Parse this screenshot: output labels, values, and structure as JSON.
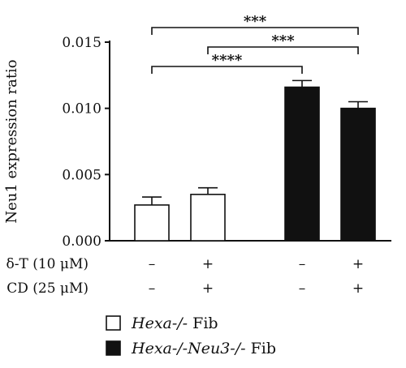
{
  "chart_data": {
    "type": "bar",
    "ylabel": "Neu1 expression ratio",
    "ylim": [
      0,
      0.015
    ],
    "yticks": [
      "0.000",
      "0.005",
      "0.010",
      "0.015"
    ],
    "ytick_values": [
      0,
      0.005,
      0.01,
      0.015
    ],
    "groups": [
      {
        "name": "Hexa-/- Fib",
        "name_italic": "Hexa-/-",
        "name_plain": " Fib",
        "fill": "#ffffff"
      },
      {
        "name": "Hexa-/-Neu3-/- Fib",
        "name_italic": "Hexa-/-Neu3-/-",
        "name_plain": " Fib",
        "fill": "#111111"
      }
    ],
    "bars": [
      {
        "group": 0,
        "treatment": {
          "dT": "–",
          "CD": "–"
        },
        "value": 0.0027,
        "error": 0.0006
      },
      {
        "group": 0,
        "treatment": {
          "dT": "+",
          "CD": "+"
        },
        "value": 0.0035,
        "error": 0.0005
      },
      {
        "group": 1,
        "treatment": {
          "dT": "–",
          "CD": "–"
        },
        "value": 0.0116,
        "error": 0.0005
      },
      {
        "group": 1,
        "treatment": {
          "dT": "+",
          "CD": "+"
        },
        "value": 0.01,
        "error": 0.0005
      }
    ],
    "treatment_rows": [
      {
        "label": "δ-T (10 μM)",
        "key": "dT"
      },
      {
        "label": "CD (25 μM)",
        "key": "CD"
      }
    ],
    "significance": [
      {
        "from": 0,
        "to": 3,
        "label": "***"
      },
      {
        "from": 1,
        "to": 3,
        "label": "***"
      },
      {
        "from": 0,
        "to": 2,
        "label": "****"
      }
    ],
    "legend_position": "bottom"
  },
  "colors": {
    "axis": "#111111",
    "dark_bar": "#111111",
    "light_bar": "#ffffff"
  }
}
